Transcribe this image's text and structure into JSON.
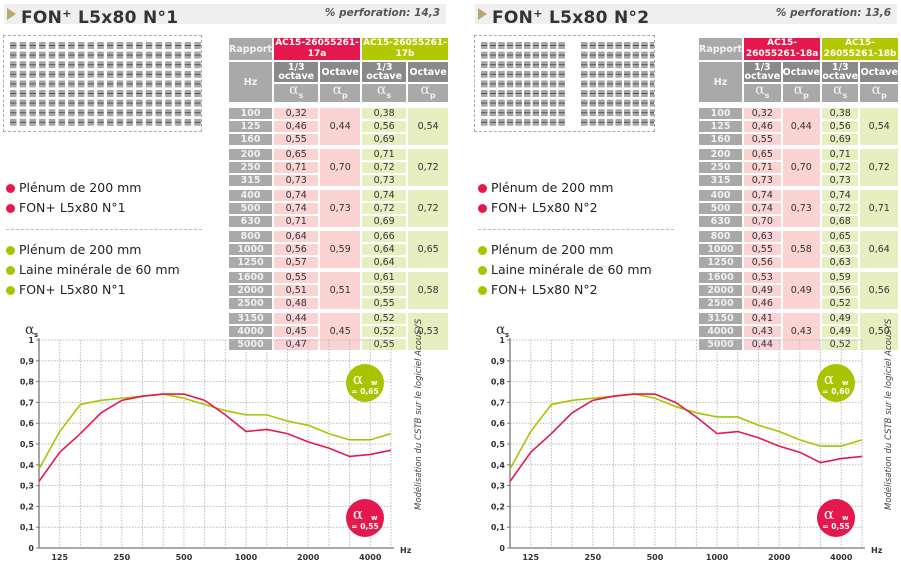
{
  "colors": {
    "red": "#e5184e",
    "green": "#a8c400",
    "red_cell": "#fbd3d3",
    "green_cell": "#e7efc0",
    "header_grey": "#a9a9a9",
    "header_dark": "#8a8a8a"
  },
  "panels": [
    {
      "title_prefix": "FON",
      "title_sup": "+",
      "title_suffix": " L5x80 N°1",
      "perforation": "% perforation: 14,3",
      "table": {
        "rapport_label": "Rapport",
        "report_a": "AC15-26055261-17a",
        "report_b": "AC15-26055261-17b",
        "hz_label": "Hz",
        "third_octave_label_1": "1/3",
        "third_octave_label_2": "octave",
        "octave_label": "Octave",
        "alpha_s": "α",
        "alpha_s_sub": "s",
        "alpha_p": "α",
        "alpha_p_sub": "p",
        "frequencies": [
          "100",
          "125",
          "160",
          "200",
          "250",
          "315",
          "400",
          "500",
          "630",
          "800",
          "1000",
          "1250",
          "1600",
          "2000",
          "2500",
          "3150",
          "4000",
          "5000"
        ],
        "a_third": [
          "0,32",
          "0,46",
          "0,55",
          "0,65",
          "0,71",
          "0,73",
          "0,74",
          "0,74",
          "0,71",
          "0,64",
          "0,56",
          "0,57",
          "0,55",
          "0,51",
          "0,48",
          "0,44",
          "0,45",
          "0,47"
        ],
        "a_octave": [
          "0,44",
          "0,70",
          "0,73",
          "0,59",
          "0,51",
          "0,45"
        ],
        "b_third": [
          "0,38",
          "0,56",
          "0,69",
          "0,71",
          "0,72",
          "0,73",
          "0,74",
          "0,72",
          "0,69",
          "0,66",
          "0,64",
          "0,64",
          "0,61",
          "0,59",
          "0,55",
          "0,52",
          "0,52",
          "0,55"
        ],
        "b_octave": [
          "0,54",
          "0,72",
          "0,72",
          "0,65",
          "0,58",
          "0,53"
        ]
      },
      "legend_red": [
        "Plénum de 200 mm",
        "FON+ L5x80 N°1"
      ],
      "legend_green": [
        "Plénum de 200 mm",
        "Laine minérale de 60 mm",
        "FON+ L5x80 N°1"
      ],
      "note": "Modélisation du CSTB sur le logiciel AcouSYS",
      "badge_green": {
        "symbol": "α",
        "sub": "w",
        "value": "= 0,65"
      },
      "badge_red": {
        "symbol": "α",
        "sub": "w",
        "value": "= 0,55"
      }
    },
    {
      "title_prefix": "FON",
      "title_sup": "+",
      "title_suffix": " L5x80 N°2",
      "perforation": "% perforation: 13,6",
      "table": {
        "rapport_label": "Rapport",
        "report_a": "AC15-26055261-18a",
        "report_b": "AC15-26055261-18b",
        "hz_label": "Hz",
        "third_octave_label_1": "1/3",
        "third_octave_label_2": "octave",
        "octave_label": "Octave",
        "alpha_s": "α",
        "alpha_s_sub": "s",
        "alpha_p": "α",
        "alpha_p_sub": "p",
        "frequencies": [
          "100",
          "125",
          "160",
          "200",
          "250",
          "315",
          "400",
          "500",
          "630",
          "800",
          "1000",
          "1250",
          "1600",
          "2000",
          "2500",
          "3150",
          "4000",
          "5000"
        ],
        "a_third": [
          "0,32",
          "0,46",
          "0,55",
          "0,65",
          "0,71",
          "0,73",
          "0,74",
          "0,74",
          "0,70",
          "0,63",
          "0,55",
          "0,56",
          "0,53",
          "0,49",
          "0,46",
          "0,41",
          "0,43",
          "0,44"
        ],
        "a_octave": [
          "0,44",
          "0,70",
          "0,73",
          "0,58",
          "0,49",
          "0,43"
        ],
        "b_third": [
          "0,38",
          "0,56",
          "0,69",
          "0,71",
          "0,72",
          "0,73",
          "0,74",
          "0,72",
          "0,68",
          "0,65",
          "0,63",
          "0,63",
          "0,59",
          "0,56",
          "0,52",
          "0,49",
          "0,49",
          "0,52"
        ],
        "b_octave": [
          "0,54",
          "0,72",
          "0,71",
          "0,64",
          "0,56",
          "0,50"
        ]
      },
      "legend_red": [
        "Plénum de 200 mm",
        "FON+ L5x80 N°2"
      ],
      "legend_green": [
        "Plénum de 200 mm",
        "Laine minérale de 60 mm",
        "FON+ L5x80 N°2"
      ],
      "note": "Modélisation du CSTB sur le logiciel AcouSYS",
      "badge_green": {
        "symbol": "α",
        "sub": "w",
        "value": "= 0,60"
      },
      "badge_red": {
        "symbol": "α",
        "sub": "w",
        "value": "= 0,55"
      }
    }
  ],
  "chart_data": [
    {
      "type": "line",
      "title": "FON+ L5x80 N°1",
      "ylabel": "αs",
      "xlabel": "Hz",
      "x": [
        100,
        125,
        160,
        200,
        250,
        315,
        400,
        500,
        630,
        800,
        1000,
        1250,
        1600,
        2000,
        2500,
        3150,
        4000,
        5000
      ],
      "xtick_labels": [
        "125",
        "250",
        "500",
        "1000",
        "2000",
        "4000"
      ],
      "ytick_labels": [
        "0",
        "0,1",
        "0,2",
        "0,3",
        "0,4",
        "0,5",
        "0,6",
        "0,7",
        "0,8",
        "0,9",
        "1"
      ],
      "ylim": [
        0,
        1
      ],
      "grid": true,
      "series": [
        {
          "name": "AC15-26055261-17a",
          "color": "#e5184e",
          "values": [
            0.32,
            0.46,
            0.55,
            0.65,
            0.71,
            0.73,
            0.74,
            0.74,
            0.71,
            0.64,
            0.56,
            0.57,
            0.55,
            0.51,
            0.48,
            0.44,
            0.45,
            0.47
          ]
        },
        {
          "name": "AC15-26055261-17b",
          "color": "#a8c400",
          "values": [
            0.38,
            0.56,
            0.69,
            0.71,
            0.72,
            0.73,
            0.74,
            0.72,
            0.69,
            0.66,
            0.64,
            0.64,
            0.61,
            0.59,
            0.55,
            0.52,
            0.52,
            0.55
          ]
        }
      ],
      "annotations": [
        "αw = 0,65 (green)",
        "αw = 0,55 (red)"
      ]
    },
    {
      "type": "line",
      "title": "FON+ L5x80 N°2",
      "ylabel": "αs",
      "xlabel": "Hz",
      "x": [
        100,
        125,
        160,
        200,
        250,
        315,
        400,
        500,
        630,
        800,
        1000,
        1250,
        1600,
        2000,
        2500,
        3150,
        4000,
        5000
      ],
      "xtick_labels": [
        "125",
        "250",
        "500",
        "1000",
        "2000",
        "4000"
      ],
      "ytick_labels": [
        "0",
        "0,1",
        "0,2",
        "0,3",
        "0,4",
        "0,5",
        "0,6",
        "0,7",
        "0,8",
        "0,9",
        "1"
      ],
      "ylim": [
        0,
        1
      ],
      "grid": true,
      "series": [
        {
          "name": "AC15-26055261-18a",
          "color": "#e5184e",
          "values": [
            0.32,
            0.46,
            0.55,
            0.65,
            0.71,
            0.73,
            0.74,
            0.74,
            0.7,
            0.63,
            0.55,
            0.56,
            0.53,
            0.49,
            0.46,
            0.41,
            0.43,
            0.44
          ]
        },
        {
          "name": "AC15-26055261-18b",
          "color": "#a8c400",
          "values": [
            0.38,
            0.56,
            0.69,
            0.71,
            0.72,
            0.73,
            0.74,
            0.72,
            0.68,
            0.65,
            0.63,
            0.63,
            0.59,
            0.56,
            0.52,
            0.49,
            0.49,
            0.52
          ]
        }
      ],
      "annotations": [
        "αw = 0,60 (green)",
        "αw = 0,55 (red)"
      ]
    }
  ]
}
